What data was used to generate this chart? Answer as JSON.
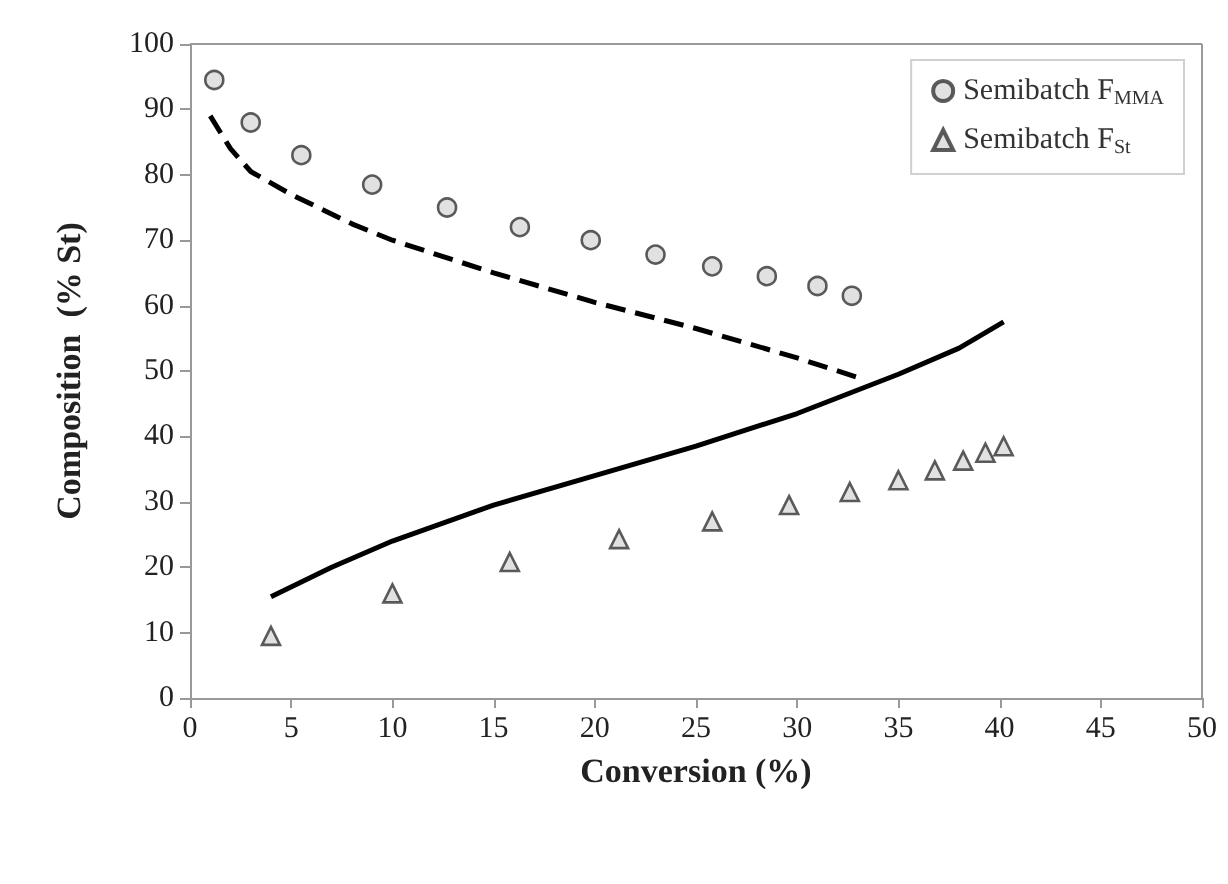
{
  "chart_data": {
    "type": "scatter",
    "xlabel": "Conversion (%)",
    "ylabel": "Composition  (% St)",
    "xlim": [
      0,
      50
    ],
    "xticks": [
      0,
      5,
      10,
      15,
      20,
      25,
      30,
      35,
      40,
      45,
      50
    ],
    "ylim": [
      0,
      100
    ],
    "yticks": [
      0,
      10,
      20,
      30,
      40,
      50,
      60,
      70,
      80,
      90,
      100
    ],
    "grid": false,
    "legend": "top right",
    "series": [
      {
        "type": "line",
        "line_style": "dashed",
        "marker": "none",
        "color": "#000000",
        "x": [
          1,
          2,
          3,
          5,
          8,
          10,
          15,
          20,
          25,
          30,
          33
        ],
        "values": [
          89,
          84,
          80.5,
          77,
          72.5,
          70,
          65,
          60.5,
          56.5,
          52,
          49
        ]
      },
      {
        "type": "line",
        "line_style": "solid",
        "marker": "none",
        "color": "#000000",
        "x": [
          4,
          7,
          10,
          15,
          20,
          25,
          30,
          35,
          38,
          40.2
        ],
        "values": [
          15.5,
          20,
          24,
          29.5,
          34,
          38.5,
          43.5,
          49.5,
          53.5,
          57.5
        ]
      },
      {
        "name": "Semibatch F$_{MMA}$",
        "marker": "circle",
        "color": "#d9d9d9",
        "x": [
          1.2,
          3,
          5.5,
          9,
          12.7,
          16.3,
          19.8,
          23,
          25.8,
          28.5,
          31,
          32.7
        ],
        "values": [
          94.5,
          88,
          83,
          78.5,
          75,
          72,
          70,
          67.8,
          66,
          64.5,
          63,
          61.5
        ]
      },
      {
        "name": "Semibatch F$_{St}$",
        "marker": "triangle",
        "color": "#d9d9d9",
        "x": [
          4,
          10,
          15.8,
          21.2,
          25.8,
          29.6,
          32.6,
          35,
          36.8,
          38.2,
          39.3,
          40.2
        ],
        "values": [
          9.5,
          16,
          20.8,
          24.3,
          27,
          29.5,
          31.5,
          33.3,
          34.8,
          36.3,
          37.5,
          38.5
        ]
      }
    ]
  }
}
